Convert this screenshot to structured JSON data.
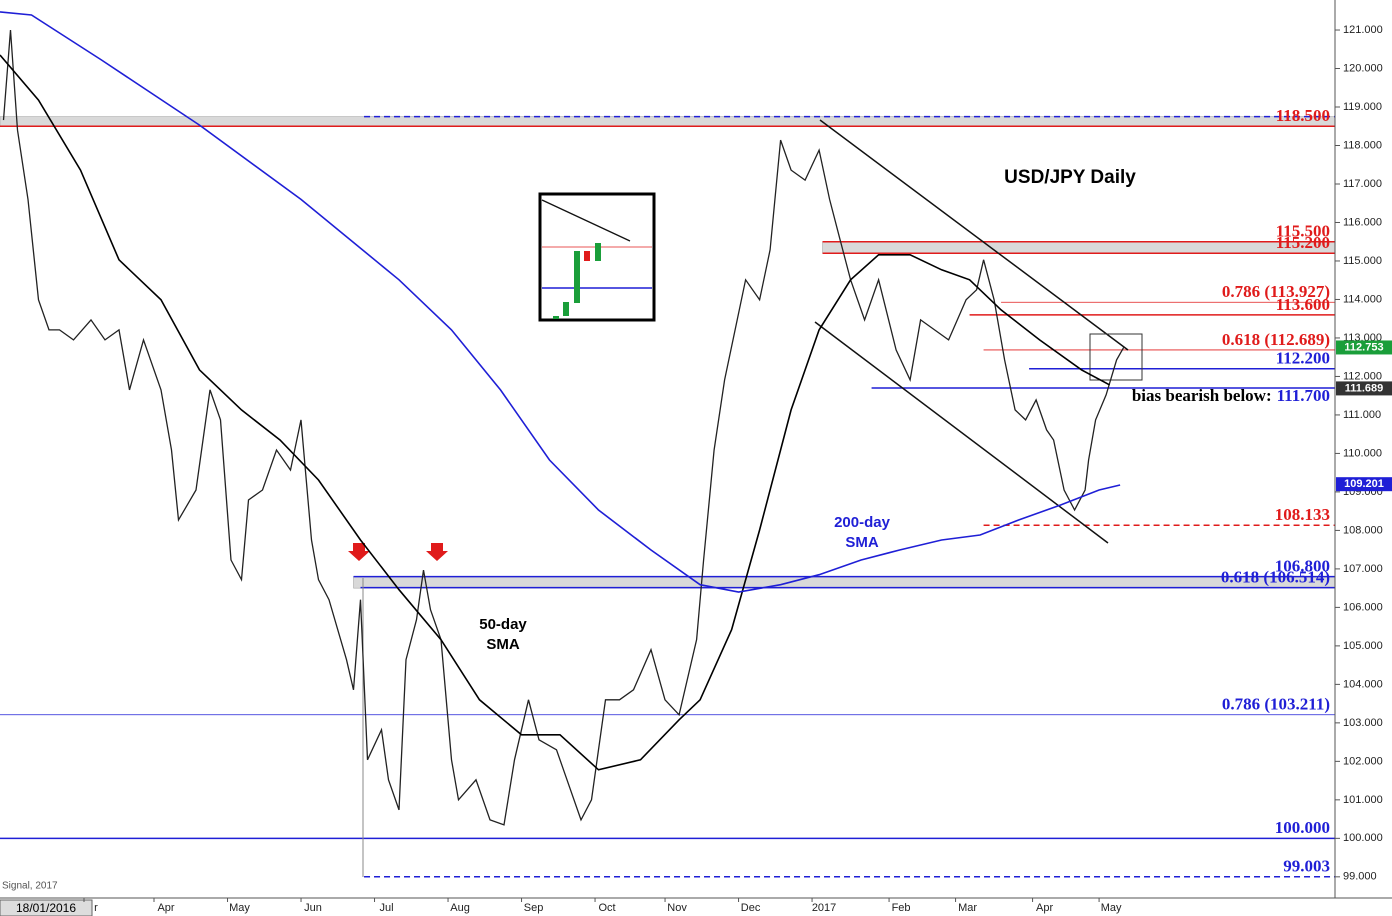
{
  "chart_data": {
    "type": "line",
    "title": "USD/JPY Daily",
    "source": "Signal, 2017",
    "start_date": "18/01/2016",
    "ylim": [
      98.45,
      121.78
    ],
    "xlim": [
      0,
      381.4
    ],
    "yticks": [
      {
        "value": 99,
        "label": "99.000"
      },
      {
        "value": 100,
        "label": "100.000"
      },
      {
        "value": 101,
        "label": "101.000"
      },
      {
        "value": 102,
        "label": "102.000"
      },
      {
        "value": 103,
        "label": "103.000"
      },
      {
        "value": 104,
        "label": "104.000"
      },
      {
        "value": 105,
        "label": "105.000"
      },
      {
        "value": 106,
        "label": "106.000"
      },
      {
        "value": 107,
        "label": "107.000"
      },
      {
        "value": 108,
        "label": "108.000"
      },
      {
        "value": 109,
        "label": "109.000"
      },
      {
        "value": 110,
        "label": "110.000"
      },
      {
        "value": 111,
        "label": "111.000"
      },
      {
        "value": 112,
        "label": "112.000"
      },
      {
        "value": 113,
        "label": "113.000"
      },
      {
        "value": 114,
        "label": "114.000"
      },
      {
        "value": 115,
        "label": "115.000"
      },
      {
        "value": 116,
        "label": "116.000"
      },
      {
        "value": 117,
        "label": "117.000"
      },
      {
        "value": 118,
        "label": "118.000"
      },
      {
        "value": 119,
        "label": "119.000"
      },
      {
        "value": 120,
        "label": "120.000"
      },
      {
        "value": 121,
        "label": "121.000"
      }
    ],
    "xticks": [
      {
        "value": 24,
        "label": "r"
      },
      {
        "value": 44,
        "label": "Apr"
      },
      {
        "value": 65,
        "label": "May"
      },
      {
        "value": 86,
        "label": "Jun"
      },
      {
        "value": 107,
        "label": "Jul"
      },
      {
        "value": 128,
        "label": "Aug"
      },
      {
        "value": 149,
        "label": "Sep"
      },
      {
        "value": 170,
        "label": "Oct"
      },
      {
        "value": 190,
        "label": "Nov"
      },
      {
        "value": 211,
        "label": "Dec"
      },
      {
        "value": 232,
        "label": "2017"
      },
      {
        "value": 254,
        "label": "Feb"
      },
      {
        "value": 273,
        "label": "Mar"
      },
      {
        "value": 295,
        "label": "Apr"
      },
      {
        "value": 314,
        "label": "May"
      }
    ],
    "series": [
      {
        "name": "USD/JPY",
        "color": "#222222",
        "x": [
          1,
          3,
          5,
          8,
          11,
          14,
          17,
          21,
          26,
          30,
          34,
          37,
          41,
          46,
          49,
          51,
          56,
          60,
          63,
          66,
          69,
          71,
          75,
          79,
          83,
          86,
          89,
          91,
          94,
          99,
          101,
          103,
          105,
          109,
          111,
          114,
          116,
          119,
          121,
          123,
          126,
          129,
          131,
          136,
          140,
          144,
          147,
          151,
          154,
          159,
          161,
          166,
          169,
          173,
          177,
          181,
          186,
          190,
          194,
          199,
          201,
          204,
          207,
          210,
          213,
          217,
          220,
          223,
          226,
          230,
          234,
          237,
          240,
          243,
          247,
          251,
          256,
          260,
          263,
          267,
          271,
          276,
          279,
          281,
          284,
          287,
          290,
          293,
          296,
          299,
          301,
          304,
          307,
          310,
          311,
          313,
          316,
          319,
          321
        ],
        "values": [
          118.66,
          121.0,
          118.4,
          116.6,
          113.99,
          113.21,
          113.21,
          112.95,
          113.47,
          112.95,
          113.21,
          111.65,
          112.95,
          111.65,
          110.09,
          108.27,
          109.05,
          111.65,
          110.87,
          107.23,
          106.72,
          108.79,
          109.05,
          110.09,
          109.57,
          110.87,
          107.75,
          106.72,
          106.2,
          104.64,
          103.86,
          106.2,
          102.04,
          102.82,
          101.52,
          100.74,
          104.64,
          105.68,
          106.97,
          105.94,
          105.16,
          102.04,
          101.0,
          101.52,
          100.48,
          100.35,
          102.04,
          103.6,
          102.56,
          102.3,
          101.78,
          100.48,
          101.0,
          103.6,
          103.6,
          103.86,
          104.9,
          103.6,
          103.21,
          105.16,
          107.23,
          110.09,
          111.91,
          113.21,
          114.51,
          113.99,
          115.29,
          118.14,
          117.36,
          117.1,
          117.88,
          116.6,
          115.55,
          114.51,
          113.47,
          114.51,
          112.69,
          111.91,
          113.47,
          113.21,
          112.95,
          113.99,
          114.25,
          115.03,
          113.99,
          112.43,
          111.13,
          110.87,
          111.39,
          110.61,
          110.35,
          109.05,
          108.53,
          109.05,
          109.83,
          110.87,
          111.52,
          112.43,
          112.75
        ]
      },
      {
        "name": "50-day SMA",
        "color": "#000000",
        "x": [
          0,
          11,
          23,
          34,
          46,
          57,
          69,
          80,
          91,
          103,
          114,
          126,
          137,
          149,
          160,
          171,
          183,
          194,
          200,
          209,
          217,
          226,
          234,
          243,
          251,
          260,
          269,
          277,
          286,
          297,
          309,
          317
        ],
        "values": [
          120.35,
          119.18,
          117.36,
          115.03,
          113.99,
          112.17,
          111.13,
          110.35,
          109.31,
          107.75,
          106.46,
          105.16,
          103.6,
          102.69,
          102.69,
          101.78,
          102.04,
          103.08,
          103.6,
          105.42,
          108.01,
          111.13,
          113.21,
          114.51,
          115.16,
          115.16,
          114.77,
          114.51,
          113.73,
          112.95,
          112.17,
          111.78
        ]
      },
      {
        "name": "200-day SMA",
        "color": "#1f1fd6",
        "x": [
          0,
          9,
          29,
          57,
          86,
          114,
          129,
          143,
          157,
          171,
          186,
          200,
          211,
          223,
          234,
          246,
          257,
          269,
          280,
          291,
          303,
          314,
          320
        ],
        "values": [
          121.47,
          121.39,
          120.22,
          118.53,
          116.6,
          114.51,
          113.21,
          111.65,
          109.83,
          108.53,
          107.49,
          106.59,
          106.4,
          106.59,
          106.85,
          107.23,
          107.49,
          107.75,
          107.88,
          108.27,
          108.66,
          109.05,
          109.18
        ]
      }
    ],
    "sma_labels": [
      {
        "lines": [
          "50-day",
          "SMA"
        ],
        "color": "#000000"
      },
      {
        "lines": [
          "200-day",
          "SMA"
        ],
        "color": "#1f1fd6"
      }
    ],
    "zones": [
      {
        "range": [
          118.5,
          118.75
        ],
        "from": 0
      },
      {
        "range": [
          115.2,
          115.5
        ],
        "from": 235
      },
      {
        "range": [
          106.5,
          106.8
        ],
        "from": 101
      }
    ],
    "levels": [
      {
        "value": 118.75,
        "color": "#1f1fd6",
        "from": 104,
        "style": "dashed"
      },
      {
        "value": 118.5,
        "label": "118.500",
        "color": "#e01b1b",
        "from": 0,
        "style": "solid"
      },
      {
        "value": 115.5,
        "label": "115.500",
        "color": "#e01b1b",
        "from": 235,
        "style": "solid"
      },
      {
        "value": 115.2,
        "label": "115.200",
        "color": "#e01b1b",
        "from": 235,
        "style": "solid"
      },
      {
        "value": 113.927,
        "label": "0.786 (113.927)",
        "color": "#e01b1b",
        "from": 286,
        "style": "thin"
      },
      {
        "value": 113.6,
        "label": "113.600",
        "color": "#e01b1b",
        "from": 277,
        "style": "solid"
      },
      {
        "value": 112.689,
        "label": "0.618 (112.689)",
        "color": "#e01b1b",
        "from": 281,
        "style": "thin"
      },
      {
        "value": 112.2,
        "label": "112.200",
        "color": "#1f1fd6",
        "from": 294,
        "style": "solid"
      },
      {
        "value": 111.7,
        "label": "111.700",
        "note": "bias bearish below:",
        "color": "#1f1fd6",
        "from": 249,
        "style": "solid"
      },
      {
        "value": 108.133,
        "label": "108.133",
        "color": "#e01b1b",
        "from": 281,
        "style": "dashed"
      },
      {
        "value": 106.8,
        "label": "106.800",
        "color": "#1f1fd6",
        "from": 101,
        "style": "solid"
      },
      {
        "value": 106.514,
        "label": "0.618 (106.514)",
        "color": "#1f1fd6",
        "from": 103,
        "style": "solid"
      },
      {
        "value": 103.211,
        "label": "0.786 (103.211)",
        "color": "#1f1fd6",
        "from": 0,
        "style": "thin"
      },
      {
        "value": 100.0,
        "label": "100.000",
        "color": "#1f1fd6",
        "from": 0,
        "style": "solid"
      },
      {
        "value": 99.003,
        "label": "99.003",
        "color": "#1f1fd6",
        "from": 104,
        "style": "dashed"
      }
    ],
    "price_tags": [
      {
        "value": 112.753,
        "label": "112.753",
        "color": "#1a9e3a"
      },
      {
        "value": 111.689,
        "label": "111.689",
        "color": "#333333"
      },
      {
        "value": 109.201,
        "label": "109.201",
        "color": "#1f1fd6"
      }
    ]
  }
}
